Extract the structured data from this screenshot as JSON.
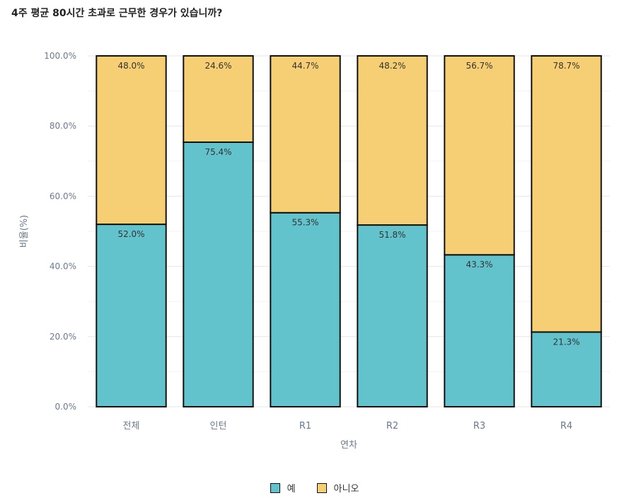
{
  "chart_data": {
    "type": "bar",
    "stacked": true,
    "title": "4주 평균 80시간 초과로 근무한 경우가 있습니까?",
    "xlabel": "연차",
    "ylabel": "비율(%)",
    "ylim": [
      0,
      100
    ],
    "yticks": [
      "0.0%",
      "20.0%",
      "40.0%",
      "60.0%",
      "80.0%",
      "100.0%"
    ],
    "ytick_values": [
      0,
      20,
      40,
      60,
      80,
      100
    ],
    "categories": [
      "전체",
      "인턴",
      "R1",
      "R2",
      "R3",
      "R4"
    ],
    "series": [
      {
        "name": "예",
        "color": "#63c3cc",
        "values": [
          52.0,
          75.4,
          55.3,
          51.8,
          43.3,
          21.3
        ],
        "labels": [
          "52.0%",
          "75.4%",
          "55.3%",
          "51.8%",
          "43.3%",
          "21.3%"
        ]
      },
      {
        "name": "아니오",
        "color": "#f6cf74",
        "values": [
          48.0,
          24.6,
          44.7,
          48.2,
          56.7,
          78.7
        ],
        "labels": [
          "48.0%",
          "24.6%",
          "44.7%",
          "48.2%",
          "56.7%",
          "78.7%"
        ]
      }
    ],
    "grid": true,
    "legend_position": "bottom"
  }
}
